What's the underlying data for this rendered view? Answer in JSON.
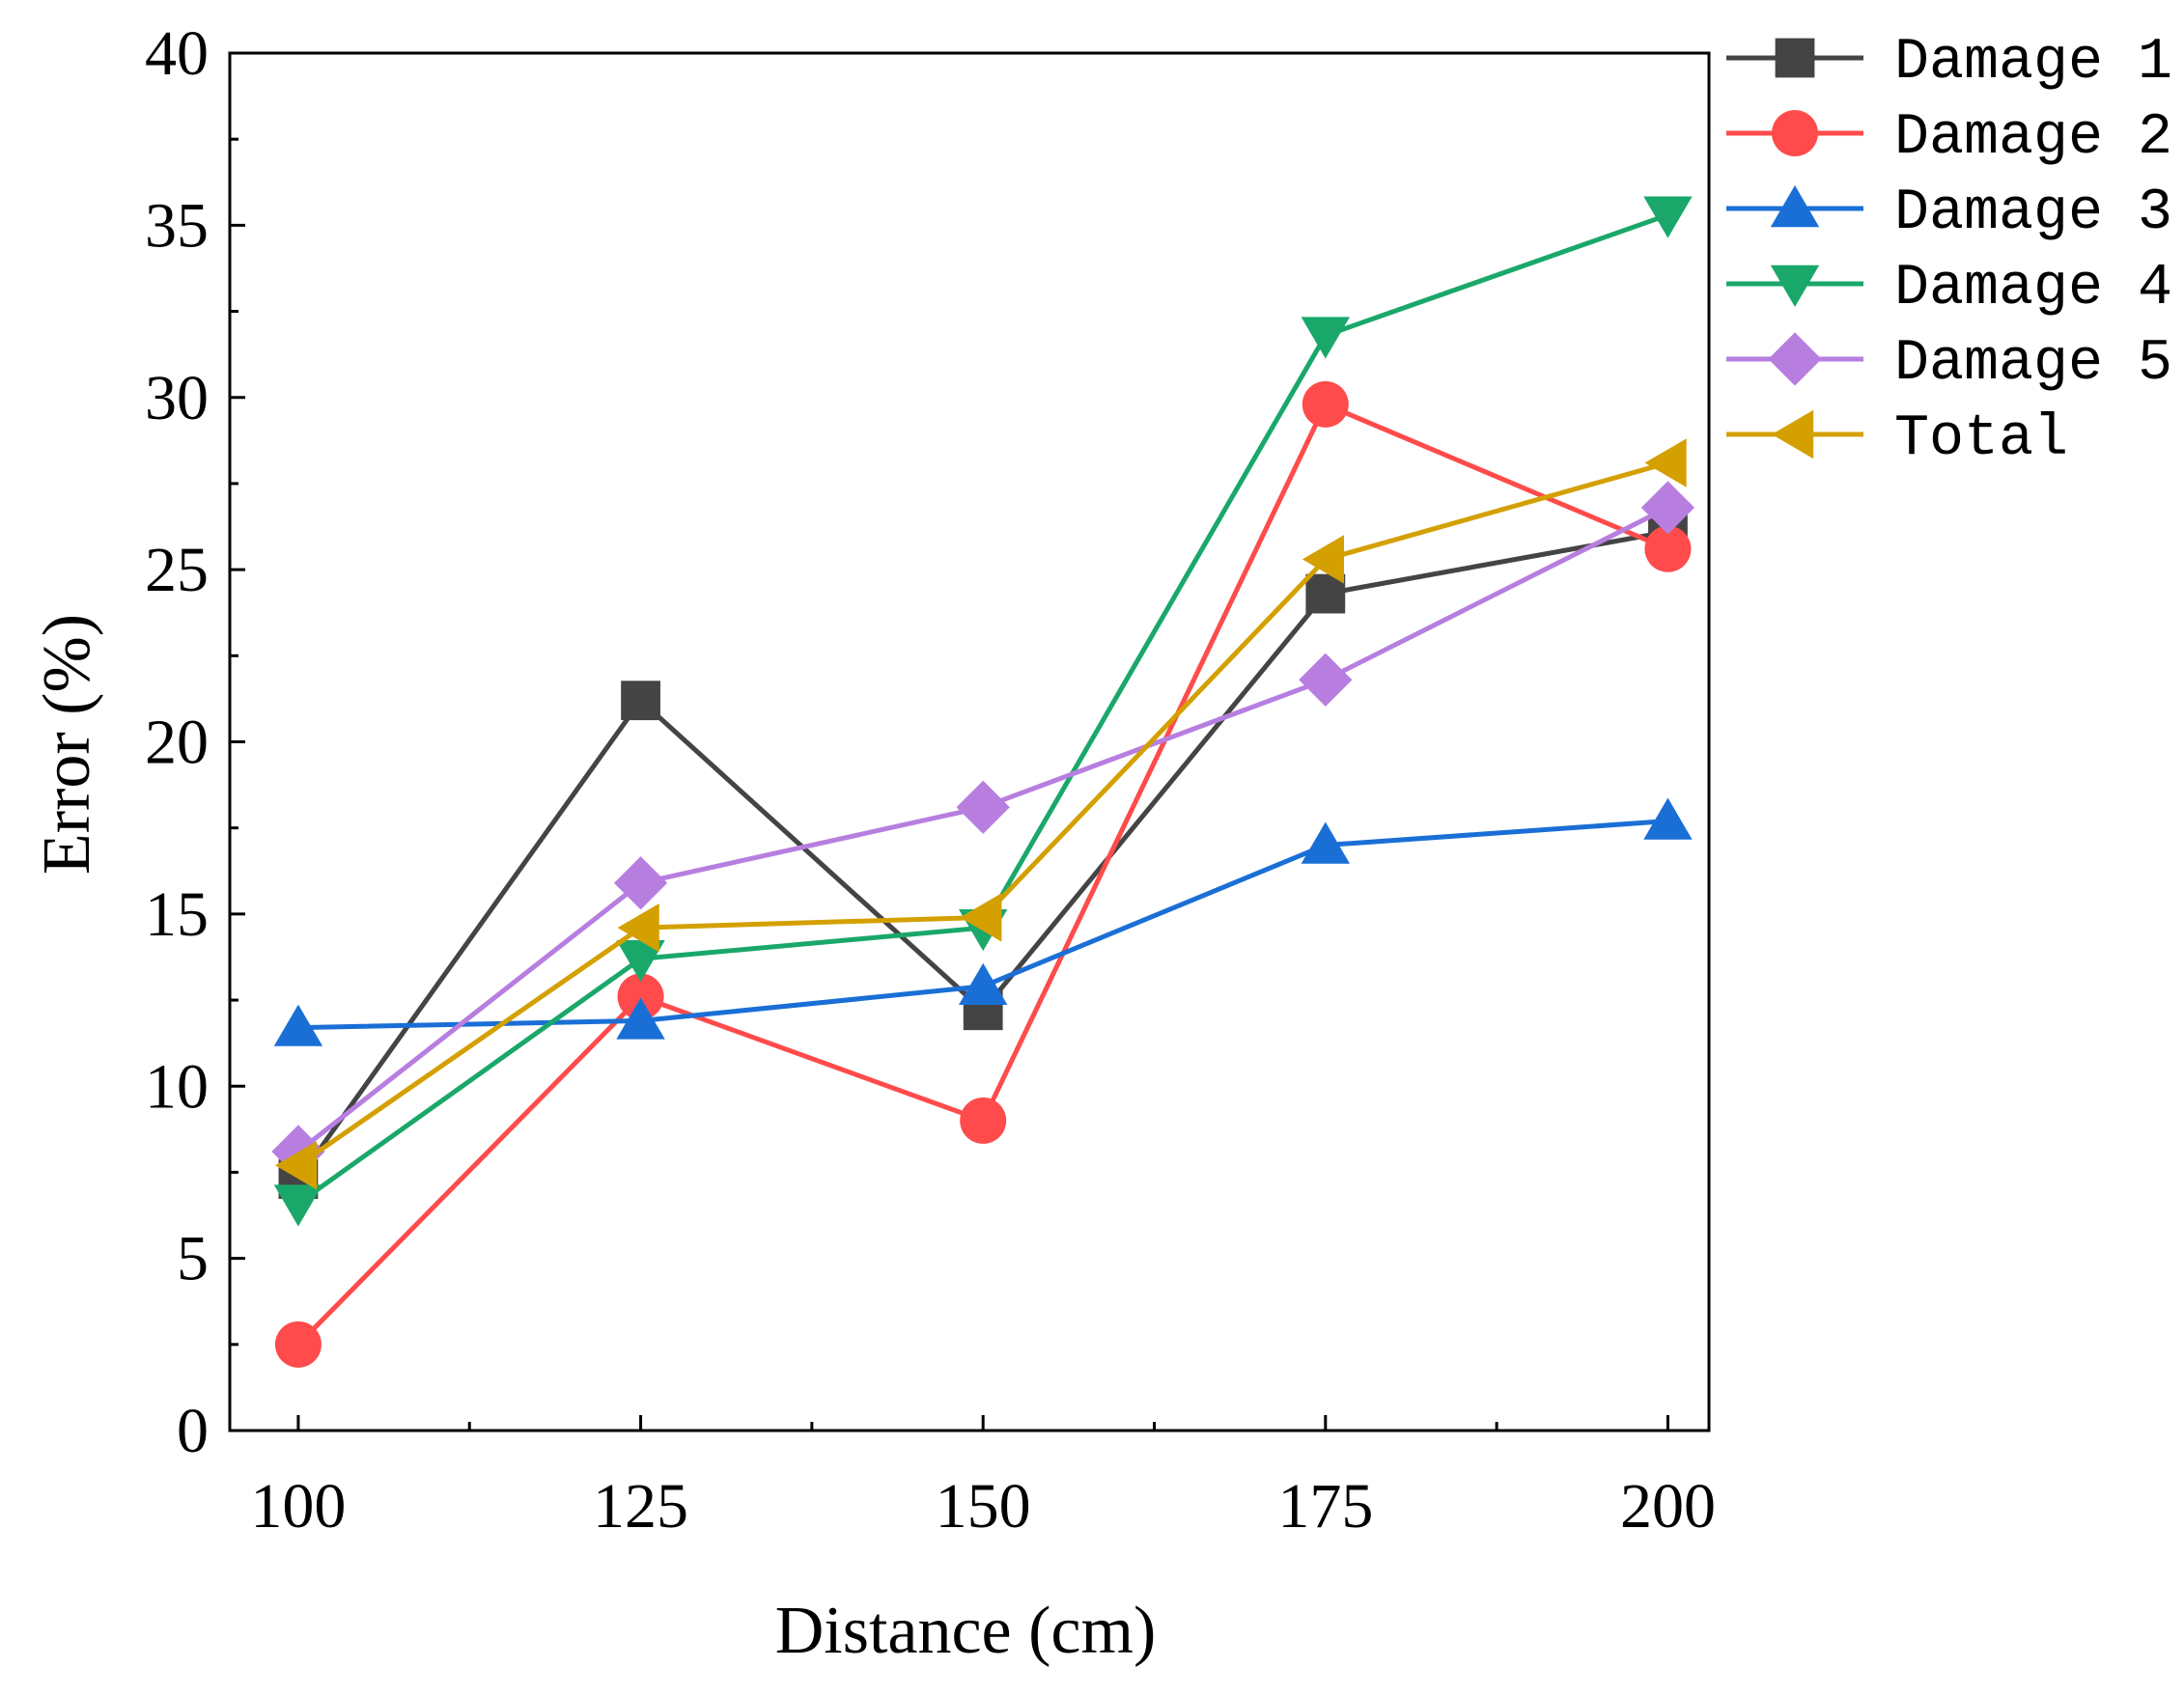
{
  "chart_data": {
    "type": "line",
    "title": "",
    "xlabel": "Distance (cm)",
    "ylabel": "Error (%)",
    "x": [
      100,
      125,
      150,
      175,
      200
    ],
    "xticks": [
      "100",
      "125",
      "150",
      "175",
      "200"
    ],
    "yticks": [
      "0",
      "5",
      "10",
      "15",
      "20",
      "25",
      "30",
      "35",
      "40"
    ],
    "xlim": [
      95,
      203
    ],
    "ylim": [
      0,
      40
    ],
    "grid": false,
    "legend_position": "top-right, outside plot",
    "series": [
      {
        "name": "Damage 1",
        "color": "#444444",
        "marker": "square",
        "values": [
          7.3,
          21.2,
          12.2,
          24.3,
          26.1
        ]
      },
      {
        "name": "Damage 2",
        "color": "#ff4b4b",
        "marker": "circle",
        "values": [
          2.5,
          12.6,
          9.0,
          29.8,
          25.6
        ]
      },
      {
        "name": "Damage 3",
        "color": "#1a6fd6",
        "marker": "triangle-up",
        "values": [
          11.7,
          11.9,
          12.9,
          17.0,
          17.7
        ]
      },
      {
        "name": "Damage 4",
        "color": "#1aa86a",
        "marker": "triangle-down",
        "values": [
          6.6,
          13.7,
          14.6,
          31.8,
          35.3
        ]
      },
      {
        "name": "Damage 5",
        "color": "#b77ee0",
        "marker": "diamond",
        "values": [
          8.1,
          15.9,
          18.1,
          21.8,
          26.8
        ]
      },
      {
        "name": "Total",
        "color": "#d4a000",
        "marker": "triangle-left",
        "values": [
          7.7,
          14.6,
          14.9,
          25.3,
          28.1
        ]
      }
    ]
  }
}
